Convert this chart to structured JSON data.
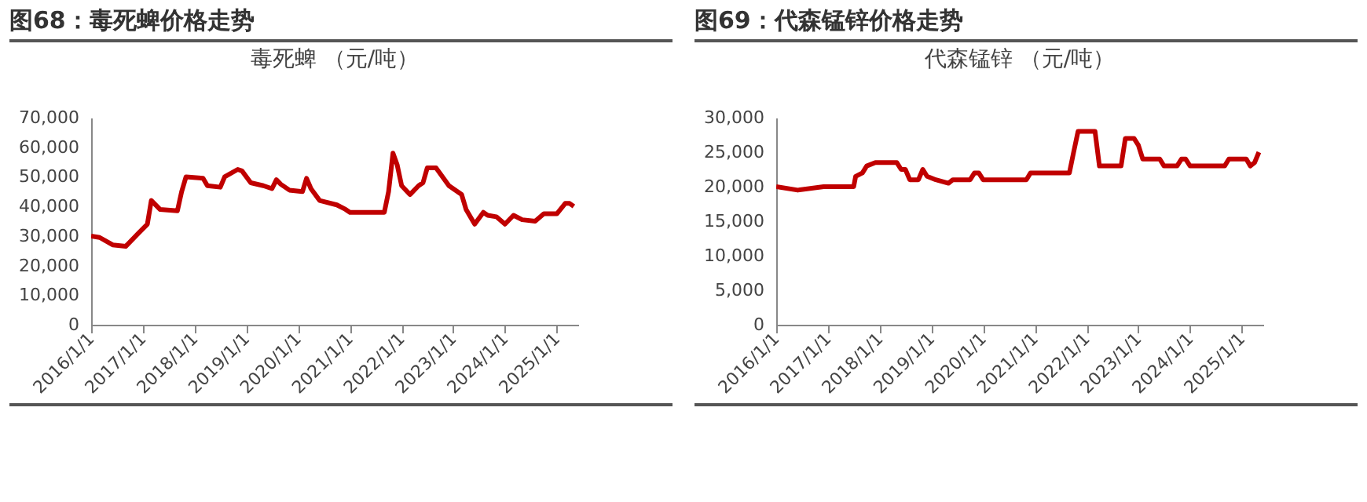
{
  "chart_data": [
    {
      "type": "line",
      "title": "图68：毒死蜱价格走势",
      "subtitle": "毒死蜱 （元/吨）",
      "x": [
        "2016-01-01",
        "2016-03-01",
        "2016-06-01",
        "2016-09-01",
        "2016-12-01",
        "2017-02-01",
        "2017-03-01",
        "2017-05-01",
        "2017-09-01",
        "2017-10-01",
        "2017-11-01",
        "2018-03-01",
        "2018-04-01",
        "2018-07-01",
        "2018-08-01",
        "2018-11-01",
        "2018-12-01",
        "2019-02-01",
        "2019-05-01",
        "2019-07-01",
        "2019-08-01",
        "2019-09-01",
        "2019-11-01",
        "2020-02-01",
        "2020-03-01",
        "2020-04-01",
        "2020-06-01",
        "2020-10-01",
        "2020-12-01",
        "2021-01-01",
        "2021-09-01",
        "2021-10-01",
        "2021-11-01",
        "2021-12-01",
        "2022-01-01",
        "2022-03-01",
        "2022-05-01",
        "2022-06-01",
        "2022-07-01",
        "2022-09-01",
        "2022-12-01",
        "2023-03-01",
        "2023-04-01",
        "2023-06-01",
        "2023-08-01",
        "2023-09-01",
        "2023-11-01",
        "2024-01-01",
        "2024-03-01",
        "2024-05-01",
        "2024-08-01",
        "2024-10-01",
        "2025-01-01",
        "2025-03-01",
        "2025-04-01",
        "2025-05-01"
      ],
      "series": [
        {
          "color": "#c00000",
          "values": [
            30000,
            29500,
            27000,
            26500,
            31000,
            34000,
            42000,
            39000,
            38500,
            45000,
            50000,
            49500,
            47000,
            46500,
            50000,
            52500,
            52000,
            48000,
            47000,
            46000,
            49000,
            47500,
            45500,
            45000,
            49500,
            46000,
            42000,
            40500,
            39000,
            38000,
            38000,
            45000,
            58000,
            54000,
            47000,
            44000,
            47000,
            48000,
            53000,
            53000,
            47000,
            44000,
            39000,
            34000,
            38000,
            37000,
            36500,
            34000,
            37000,
            35500,
            35000,
            37500,
            37500,
            41000,
            41000,
            40000
          ]
        }
      ],
      "xlim": [
        "2016-01-01",
        "2025-06-01"
      ],
      "xticks": [
        {
          "value": "2016-01-01",
          "label": "2016/1/1"
        },
        {
          "value": "2017-01-01",
          "label": "2017/1/1"
        },
        {
          "value": "2018-01-01",
          "label": "2018/1/1"
        },
        {
          "value": "2019-01-01",
          "label": "2019/1/1"
        },
        {
          "value": "2020-01-01",
          "label": "2020/1/1"
        },
        {
          "value": "2021-01-01",
          "label": "2021/1/1"
        },
        {
          "value": "2022-01-01",
          "label": "2022/1/1"
        },
        {
          "value": "2023-01-01",
          "label": "2023/1/1"
        },
        {
          "value": "2024-01-01",
          "label": "2024/1/1"
        },
        {
          "value": "2025-01-01",
          "label": "2025/1/1"
        }
      ],
      "ylim": [
        0,
        70000
      ],
      "yticks": [
        0,
        {
          "value": 10000,
          "label": "10,000"
        },
        {
          "value": 20000,
          "label": "20,000"
        },
        {
          "value": 30000,
          "label": "30,000"
        },
        {
          "value": 40000,
          "label": "40,000"
        },
        {
          "value": 50000,
          "label": "50,000"
        },
        {
          "value": 60000,
          "label": "60,000"
        },
        {
          "value": 70000,
          "label": "70,000"
        }
      ],
      "grid": false
    },
    {
      "type": "line",
      "title": "图69：代森锰锌价格走势",
      "subtitle": "代森锰锌 （元/吨）",
      "x": [
        "2016-01-01",
        "2016-06-01",
        "2016-12-01",
        "2017-07-01",
        "2017-07-15",
        "2017-09-01",
        "2017-10-01",
        "2017-12-01",
        "2018-05-01",
        "2018-06-01",
        "2018-07-01",
        "2018-08-01",
        "2018-10-01",
        "2018-11-01",
        "2018-12-01",
        "2019-02-01",
        "2019-05-01",
        "2019-06-01",
        "2019-10-01",
        "2019-11-01",
        "2019-12-01",
        "2020-01-01",
        "2020-11-01",
        "2020-12-01",
        "2021-09-01",
        "2021-10-01",
        "2021-11-01",
        "2022-03-01",
        "2022-04-01",
        "2022-09-01",
        "2022-10-01",
        "2022-12-01",
        "2023-01-01",
        "2023-02-01",
        "2023-06-01",
        "2023-07-01",
        "2023-10-01",
        "2023-11-01",
        "2023-12-01",
        "2024-01-01",
        "2024-09-01",
        "2024-10-01",
        "2025-02-01",
        "2025-03-01",
        "2025-04-01",
        "2025-05-01"
      ],
      "series": [
        {
          "color": "#c00000",
          "values": [
            20000,
            19500,
            20000,
            20000,
            21500,
            22000,
            23000,
            23500,
            23500,
            22500,
            22500,
            21000,
            21000,
            22500,
            21500,
            21000,
            20500,
            21000,
            21000,
            22000,
            22000,
            21000,
            21000,
            22000,
            22000,
            25000,
            28000,
            28000,
            23000,
            23000,
            27000,
            27000,
            26000,
            24000,
            24000,
            23000,
            23000,
            24000,
            24000,
            23000,
            23000,
            24000,
            24000,
            23000,
            23500,
            25000
          ]
        }
      ],
      "xlim": [
        "2016-01-01",
        "2025-06-01"
      ],
      "xticks": [
        {
          "value": "2016-01-01",
          "label": "2016/1/1"
        },
        {
          "value": "2017-01-01",
          "label": "2017/1/1"
        },
        {
          "value": "2018-01-01",
          "label": "2018/1/1"
        },
        {
          "value": "2019-01-01",
          "label": "2019/1/1"
        },
        {
          "value": "2020-01-01",
          "label": "2020/1/1"
        },
        {
          "value": "2021-01-01",
          "label": "2021/1/1"
        },
        {
          "value": "2022-01-01",
          "label": "2022/1/1"
        },
        {
          "value": "2023-01-01",
          "label": "2023/1/1"
        },
        {
          "value": "2024-01-01",
          "label": "2024/1/1"
        },
        {
          "value": "2025-01-01",
          "label": "2025/1/1"
        }
      ],
      "ylim": [
        0,
        30000
      ],
      "yticks": [
        0,
        {
          "value": 5000,
          "label": "5,000"
        },
        {
          "value": 10000,
          "label": "10,000"
        },
        {
          "value": 15000,
          "label": "15,000"
        },
        {
          "value": 20000,
          "label": "20,000"
        },
        {
          "value": 25000,
          "label": "25,000"
        },
        {
          "value": 30000,
          "label": "30,000"
        }
      ],
      "grid": false
    }
  ]
}
